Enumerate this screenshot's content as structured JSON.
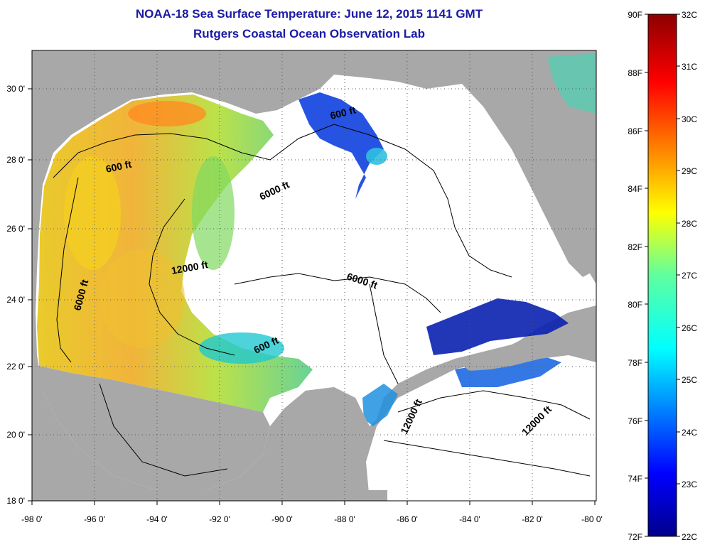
{
  "title": "NOAA-18 Sea Surface Temperature:  June 12, 2015 1141 GMT",
  "subtitle": "Rutgers Coastal Ocean Observation Lab",
  "axes": {
    "x_ticks": [
      "-98 0'",
      "-96 0'",
      "-94 0'",
      "-92 0'",
      "-90 0'",
      "-88 0'",
      "-86 0'",
      "-84 0'",
      "-82 0'",
      "-80 0'"
    ],
    "y_ticks": [
      "30 0'",
      "28 0'",
      "26 0'",
      "24 0'",
      "22 0'",
      "20 0'",
      "18 0'"
    ]
  },
  "contour_labels": [
    "600 ft",
    "600 ft",
    "6000 ft",
    "6000 ft",
    "12000 ft",
    "6000 ft",
    "600 ft",
    "12000 ft",
    "12000 ft"
  ],
  "colorbar": {
    "fahrenheit": [
      "90F",
      "88F",
      "86F",
      "84F",
      "82F",
      "80F",
      "78F",
      "76F",
      "74F",
      "72F"
    ],
    "celsius": [
      "32C",
      "31C",
      "30C",
      "29C",
      "28C",
      "27C",
      "26C",
      "25C",
      "24C",
      "23C",
      "22C"
    ],
    "range_c": [
      22,
      32
    ],
    "range_f": [
      72,
      90
    ]
  },
  "colors": {
    "title": "#1a1aa6",
    "land": "#a8a8a8",
    "no_data": "#ffffff",
    "cold": "#00008c",
    "warm": "#8c0000"
  }
}
